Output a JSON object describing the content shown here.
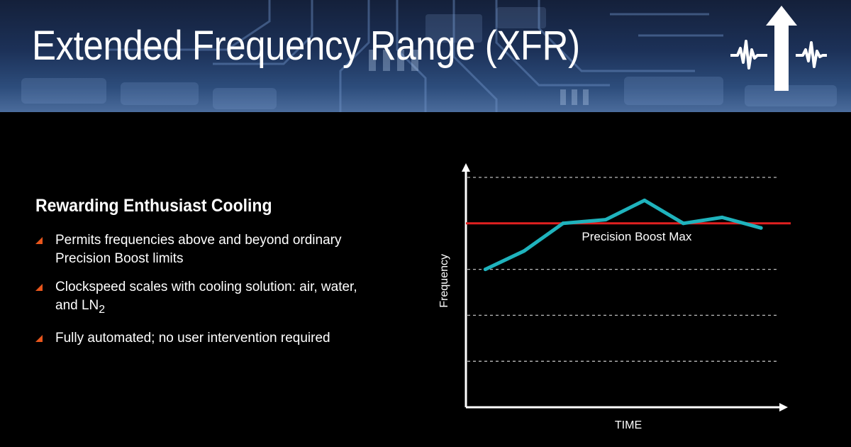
{
  "header": {
    "title": "Extended Frequency Range (XFR)",
    "logo_icon": "xfr-waveform-arrow-icon"
  },
  "content": {
    "heading": "Rewarding Enthusiast Cooling",
    "bullets": [
      {
        "text": "Permits frequencies above and beyond ordinary Precision Boost limits"
      },
      {
        "text": "Clockspeed scales with cooling solution: air, water, and LN",
        "subscript": "2"
      },
      {
        "text": "Fully automated; no user intervention required"
      }
    ],
    "bullet_color": "#e8561c"
  },
  "chart_data": {
    "type": "line",
    "xlabel": "TIME",
    "ylabel": "Frequency",
    "xlim": [
      0,
      8
    ],
    "ylim": [
      0,
      5
    ],
    "grid": {
      "horizontal_dashed": true,
      "levels": [
        1,
        2,
        3,
        4,
        5
      ]
    },
    "reference_line": {
      "label": "Precision Boost Max",
      "value": 4.0,
      "color": "#e02020"
    },
    "series": [
      {
        "color": "#1fb3bd",
        "x": [
          0.5,
          1.5,
          2.5,
          3.6,
          4.6,
          5.6,
          6.6,
          7.6
        ],
        "values": [
          3.0,
          3.4,
          4.0,
          4.08,
          4.5,
          4.0,
          4.13,
          3.9
        ]
      }
    ]
  }
}
